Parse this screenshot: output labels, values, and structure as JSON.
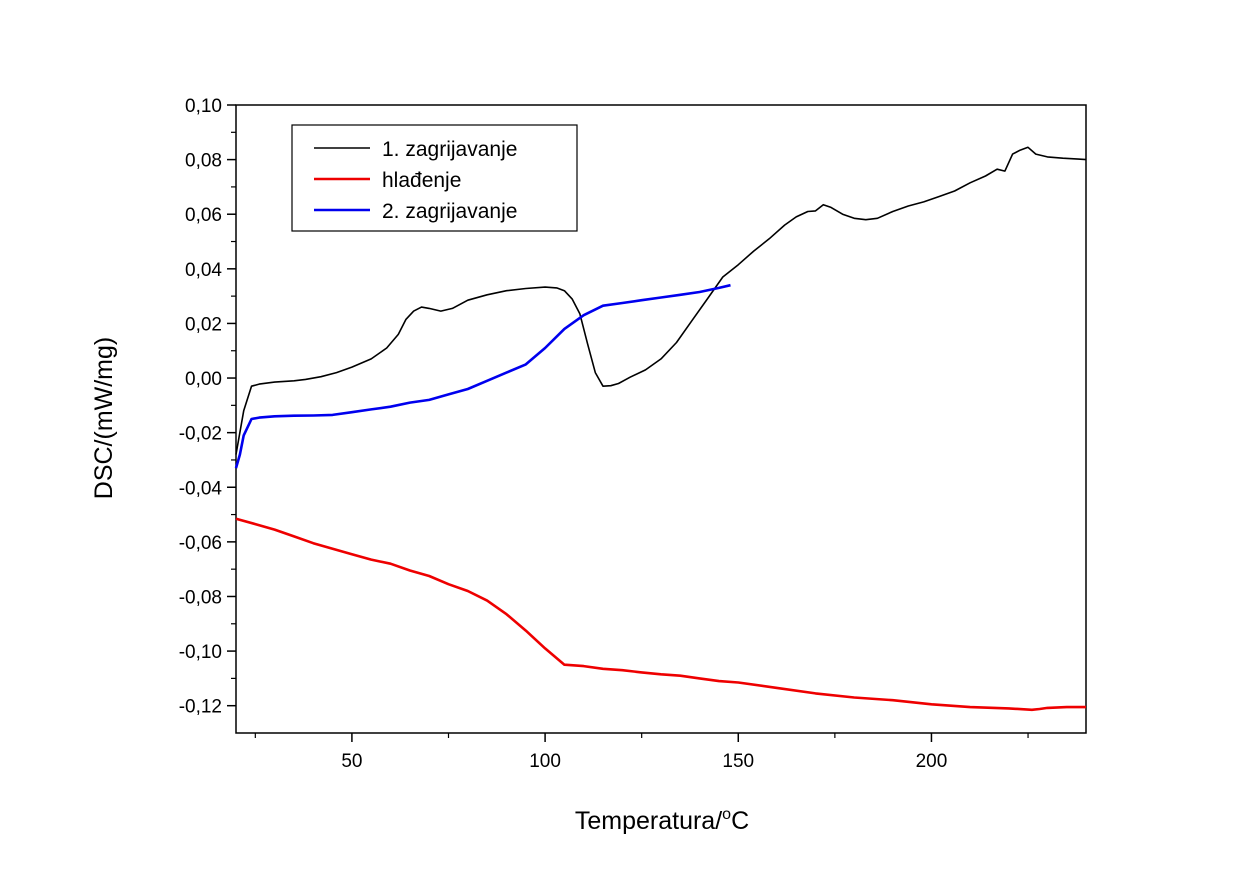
{
  "chart_data": {
    "type": "line",
    "title": "",
    "xlabel_main": "Temperatura/",
    "xlabel_sup": "o",
    "xlabel_unit": "C",
    "ylabel": "DSC/(mW/mg)",
    "xlim": [
      20,
      240
    ],
    "ylim": [
      -0.13,
      0.1
    ],
    "x_ticks": [
      50,
      100,
      150,
      200
    ],
    "x_tick_labels": [
      "50",
      "100",
      "150",
      "200"
    ],
    "y_ticks": [
      0.1,
      0.08,
      0.06,
      0.04,
      0.02,
      0.0,
      -0.02,
      -0.04,
      -0.06,
      -0.08,
      -0.1,
      -0.12
    ],
    "y_tick_labels": [
      "0,10",
      "0,08",
      "0,06",
      "0,04",
      "0,02",
      "0,00",
      "-0,02",
      "-0,04",
      "-0,06",
      "-0,08",
      "-0,10",
      "-0,12"
    ],
    "grid": false,
    "legend_position": "top-left",
    "series": [
      {
        "name": "1. zagrijavanje",
        "color": "#000000",
        "x": [
          20,
          22,
          24,
          26,
          30,
          35,
          38,
          42,
          46,
          50,
          55,
          59,
          62,
          64,
          66,
          68,
          70,
          73,
          76,
          80,
          85,
          90,
          95,
          100,
          103,
          105,
          107,
          109,
          111,
          113,
          115,
          117,
          119,
          122,
          126,
          130,
          134,
          138,
          142,
          146,
          150,
          154,
          158,
          162,
          165,
          168,
          170,
          172,
          174,
          177,
          180,
          183,
          186,
          190,
          194,
          198,
          202,
          206,
          210,
          214,
          217,
          219,
          221,
          223,
          225,
          227,
          230,
          234,
          238,
          240
        ],
        "y": [
          -0.028,
          -0.012,
          -0.003,
          -0.0022,
          -0.0015,
          -0.001,
          -0.0005,
          0.0005,
          0.002,
          0.004,
          0.007,
          0.011,
          0.016,
          0.0215,
          0.0245,
          0.026,
          0.0255,
          0.0245,
          0.0255,
          0.0285,
          0.0305,
          0.032,
          0.0328,
          0.0333,
          0.033,
          0.032,
          0.029,
          0.0235,
          0.0125,
          0.002,
          -0.003,
          -0.0028,
          -0.002,
          0.0003,
          0.003,
          0.007,
          0.013,
          0.021,
          0.029,
          0.037,
          0.0415,
          0.0465,
          0.051,
          0.056,
          0.059,
          0.061,
          0.0612,
          0.0635,
          0.0625,
          0.06,
          0.0585,
          0.058,
          0.0585,
          0.061,
          0.063,
          0.0645,
          0.0665,
          0.0685,
          0.0715,
          0.074,
          0.0765,
          0.0758,
          0.082,
          0.0835,
          0.0845,
          0.082,
          0.081,
          0.0805,
          0.0802,
          0.08
        ]
      },
      {
        "name": "hlađenje",
        "color": "#ee0000",
        "x": [
          20,
          25,
          30,
          35,
          40,
          45,
          50,
          55,
          60,
          65,
          70,
          75,
          80,
          85,
          90,
          95,
          100,
          105,
          110,
          115,
          120,
          125,
          130,
          135,
          140,
          145,
          150,
          160,
          170,
          180,
          190,
          200,
          210,
          220,
          226,
          228,
          230,
          235,
          240
        ],
        "y": [
          -0.0515,
          -0.0535,
          -0.0555,
          -0.058,
          -0.0605,
          -0.0625,
          -0.0645,
          -0.0665,
          -0.068,
          -0.0705,
          -0.0725,
          -0.0755,
          -0.078,
          -0.0815,
          -0.0865,
          -0.0925,
          -0.099,
          -0.105,
          -0.1055,
          -0.1065,
          -0.107,
          -0.1078,
          -0.1085,
          -0.109,
          -0.11,
          -0.111,
          -0.1115,
          -0.1135,
          -0.1155,
          -0.117,
          -0.118,
          -0.1195,
          -0.1205,
          -0.121,
          -0.1215,
          -0.1212,
          -0.1208,
          -0.1205,
          -0.1205
        ]
      },
      {
        "name": "2. zagrijavanje",
        "color": "#0000ee",
        "x": [
          20,
          21,
          22,
          24,
          26,
          30,
          35,
          40,
          45,
          50,
          55,
          60,
          65,
          70,
          75,
          80,
          85,
          90,
          95,
          100,
          105,
          110,
          115,
          120,
          125,
          130,
          135,
          140,
          145,
          148
        ],
        "y": [
          -0.033,
          -0.028,
          -0.021,
          -0.015,
          -0.0145,
          -0.014,
          -0.0138,
          -0.0137,
          -0.0135,
          -0.0125,
          -0.0115,
          -0.0105,
          -0.009,
          -0.008,
          -0.006,
          -0.004,
          -0.001,
          0.002,
          0.005,
          0.011,
          0.018,
          0.023,
          0.0265,
          0.0275,
          0.0285,
          0.0295,
          0.0305,
          0.0315,
          0.033,
          0.034
        ]
      }
    ]
  }
}
